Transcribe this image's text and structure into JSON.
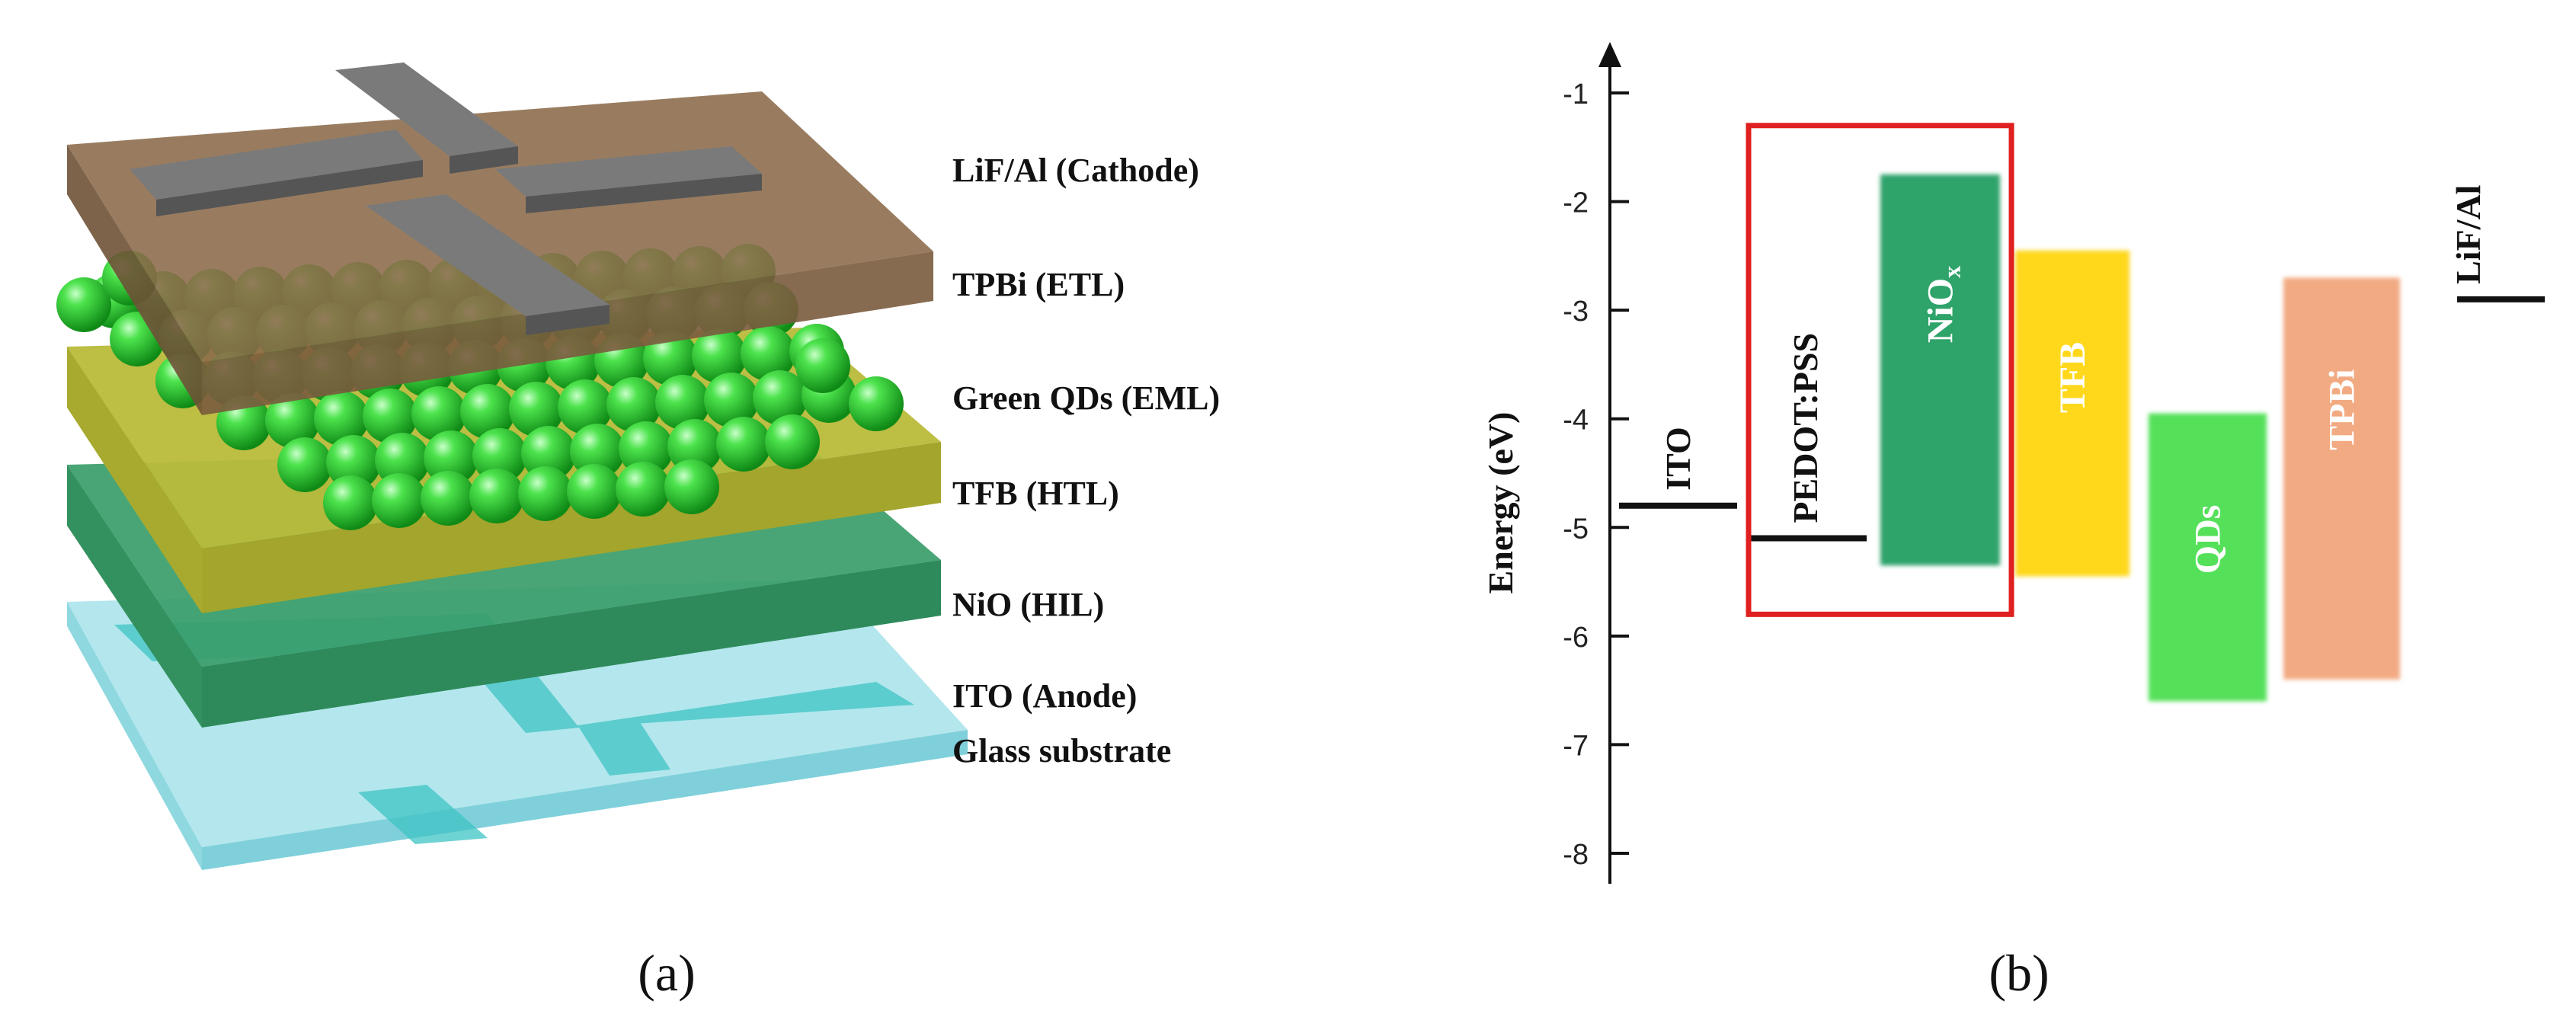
{
  "panel_a": {
    "caption": "(a)",
    "layer_labels": [
      "LiF/Al (Cathode)",
      "TPBi (ETL)",
      "Green QDs (EML)",
      "TFB (HTL)",
      "NiO (HIL)",
      "ITO (Anode)",
      "Glass substrate"
    ],
    "colors": {
      "cathode": "#7a7a7a",
      "etl": "#8b6a4a",
      "qd": "#2fd12f",
      "htl": "#b6b832",
      "hil": "#3a9d6a",
      "ito": "#3fc4c4",
      "glass": "#a6e3ea"
    }
  },
  "panel_b": {
    "caption": "(b)",
    "chart_data": {
      "type": "energy-level-diagram",
      "ylabel": "Energy (eV)",
      "ylim": [
        -8.3,
        -0.6
      ],
      "yticks": [
        "-1",
        "-2",
        "-3",
        "-4",
        "-5",
        "-6",
        "-7",
        "-8"
      ],
      "levels": [
        {
          "name": "ITO",
          "value": -4.8
        },
        {
          "name": "PEDOT:PSS",
          "value": -5.1
        },
        {
          "name": "LiF/Al",
          "value": -2.9
        }
      ],
      "bands": [
        {
          "name": "NiO",
          "subscript": "x",
          "top": -1.75,
          "bottom": -5.35,
          "color": "#2ea36a",
          "label_color": "#ffffff"
        },
        {
          "name": "TFB",
          "top": -2.45,
          "bottom": -5.45,
          "color": "#ffd81a",
          "label_color": "#ffffff"
        },
        {
          "name": "QDs",
          "top": -3.95,
          "bottom": -6.6,
          "color": "#55e05a",
          "label_color": "#ffffff"
        },
        {
          "name": "TPBi",
          "top": -2.7,
          "bottom": -6.4,
          "color": "#f2aa82",
          "label_color": "#ffffff"
        }
      ],
      "highlight_box": {
        "top": -1.3,
        "bottom": -5.8,
        "color": "#e02020"
      }
    }
  }
}
